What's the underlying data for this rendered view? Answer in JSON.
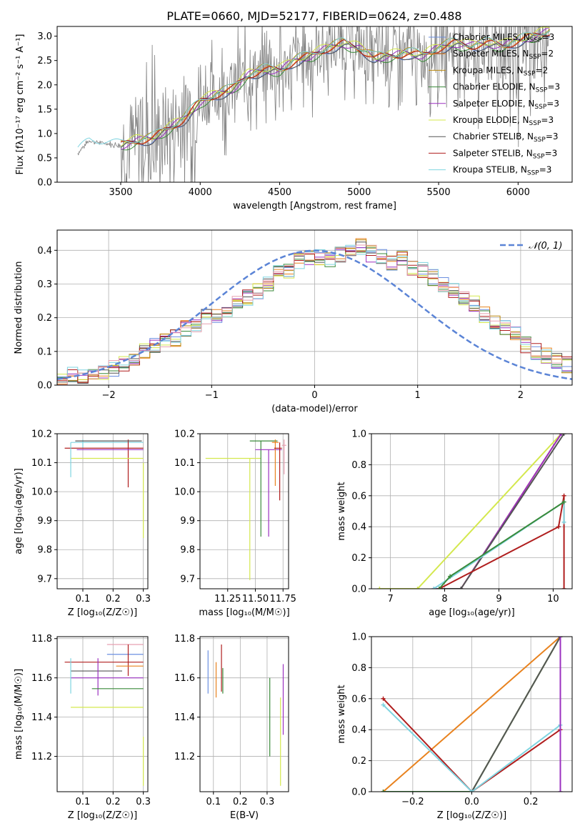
{
  "figure": {
    "title": "PLATE=0660, MJD=52177, FIBERID=0624, z=0.488"
  },
  "chart_data": [
    {
      "id": "spectrum",
      "type": "line",
      "xlabel": "wavelength [Angstrom, rest frame]",
      "ylabel": "Flux [fλ10⁻¹⁷ erg cm⁻² s⁻¹ A⁻¹]",
      "xlim": [
        3100,
        6340
      ],
      "ylim": [
        0,
        3.2
      ],
      "xticks": [
        3500,
        4000,
        4500,
        5000,
        5500,
        6000
      ],
      "yticks": [
        0.0,
        0.5,
        1.0,
        1.5,
        2.0,
        2.5,
        3.0
      ],
      "data_series": {
        "name": "data",
        "color": "#808080"
      },
      "model_points": {
        "x": [
          3230,
          3300,
          3400,
          3500,
          3600,
          3700,
          3800,
          3900,
          4000,
          4100,
          4200,
          4300,
          4400,
          4500,
          4600,
          4700,
          4800,
          4900,
          5000,
          5100,
          5200,
          5300,
          5400,
          5500,
          5600,
          5700,
          5800,
          5900,
          6000,
          6100,
          6200
        ],
        "y": [
          0.6,
          0.85,
          0.8,
          0.75,
          0.85,
          0.9,
          1.1,
          1.3,
          1.65,
          1.8,
          1.9,
          2.2,
          2.3,
          2.3,
          2.5,
          2.6,
          2.75,
          2.85,
          2.75,
          2.55,
          2.6,
          2.65,
          2.6,
          2.75,
          2.85,
          2.8,
          2.85,
          2.8,
          2.9,
          3.0,
          3.1
        ]
      },
      "legend": [
        {
          "text": "Chabrier MILES, N",
          "sub": "SSP",
          "tail": "=3",
          "color": "#6b8fe0"
        },
        {
          "text": "Salpeter MILES, N",
          "sub": "SSP",
          "tail": "=2",
          "color": "#e8821e"
        },
        {
          "text": "Kroupa MILES, N",
          "sub": "SSP",
          "tail": "=2",
          "color": "#b8860b"
        },
        {
          "text": "Chabrier ELODIE, N",
          "sub": "SSP",
          "tail": "=3",
          "color": "#3a8a3a"
        },
        {
          "text": "Salpeter ELODIE, N",
          "sub": "SSP",
          "tail": "=3",
          "color": "#9b30c0"
        },
        {
          "text": "Kroupa ELODIE, N",
          "sub": "SSP",
          "tail": "=3",
          "color": "#d4e84e"
        },
        {
          "text": "Chabrier STELIB, N",
          "sub": "SSP",
          "tail": "=3",
          "color": "#555555"
        },
        {
          "text": "Salpeter STELIB, N",
          "sub": "SSP",
          "tail": "=3",
          "color": "#b01e1e"
        },
        {
          "text": "Kroupa STELIB, N",
          "sub": "SSP",
          "tail": "=3",
          "color": "#7fd4e0"
        }
      ],
      "legend_position": "top-right"
    },
    {
      "id": "residuals",
      "type": "line",
      "xlabel": "(data-model)/error",
      "ylabel": "Normed distribution",
      "xlim": [
        -2.5,
        2.5
      ],
      "ylim": [
        0,
        0.46
      ],
      "xticks": [
        -2,
        -1,
        0,
        1,
        2
      ],
      "xticklabels": [
        "−2",
        "−1",
        "0",
        "1",
        "2"
      ],
      "yticks": [
        0.0,
        0.1,
        0.2,
        0.3,
        0.4
      ],
      "grid": true,
      "bin_width": 0.1,
      "histogram_heights": [
        0.02,
        0.03,
        0.03,
        0.04,
        0.04,
        0.05,
        0.06,
        0.07,
        0.1,
        0.12,
        0.13,
        0.14,
        0.17,
        0.18,
        0.2,
        0.2,
        0.22,
        0.24,
        0.26,
        0.28,
        0.3,
        0.33,
        0.34,
        0.37,
        0.38,
        0.38,
        0.37,
        0.39,
        0.4,
        0.41,
        0.39,
        0.38,
        0.36,
        0.38,
        0.35,
        0.34,
        0.32,
        0.3,
        0.28,
        0.26,
        0.24,
        0.21,
        0.19,
        0.17,
        0.15,
        0.12,
        0.1,
        0.09,
        0.07,
        0.06
      ],
      "gaussian": {
        "name": "𝒩(0, 1)",
        "mu": 0,
        "sigma": 1,
        "color": "#5b84d6"
      },
      "legend_position": "top-right"
    },
    {
      "id": "age-vs-Z",
      "type": "scatter",
      "xlabel": "Z [log₁₀(Z/Z☉)]",
      "ylabel": "age  [log₁₀(age/yr)]",
      "xlim": [
        0.015,
        0.315
      ],
      "ylim": [
        9.665,
        10.2
      ],
      "xticks": [
        0.1,
        0.2,
        0.3
      ],
      "yticks": [
        9.7,
        9.8,
        9.9,
        10.0,
        10.1,
        10.2
      ],
      "grid": true,
      "errorbars": [
        {
          "x": 0.1,
          "y": 10.17,
          "xerr": [
            0.04,
            0.2
          ],
          "yerr": [
            0.02,
            0.01
          ],
          "color": "#7fd4e0"
        },
        {
          "x": 0.25,
          "y": 10.15,
          "xerr": [
            0.21,
            0.05
          ],
          "yerr": [
            0.135,
            0.03
          ],
          "color": "#b01e1e"
        },
        {
          "x": 0.15,
          "y": 10.145,
          "xerr": [
            0.07,
            0.15
          ],
          "yerr": [
            0.0,
            0.0
          ],
          "color": "#9b30c0"
        },
        {
          "x": 0.2,
          "y": 10.115,
          "xerr": [
            0.14,
            0.1
          ],
          "yerr": [
            0.0,
            0.0
          ],
          "color": "#d4e84e"
        },
        {
          "x": 0.3,
          "y": 10.1,
          "xerr": [
            0.0,
            0.0
          ],
          "yerr": [
            0.26,
            0.0
          ],
          "color": "#d4e84e"
        },
        {
          "x": 0.06,
          "y": 10.05,
          "xerr": [
            0.0,
            0.0
          ],
          "yerr": [
            0.0,
            0.12
          ],
          "color": "#7fd4e0"
        },
        {
          "x": 0.175,
          "y": 10.175,
          "xerr": [
            0.1,
            0.12
          ],
          "yerr": [
            0.0,
            0.0
          ],
          "color": "#555555"
        }
      ]
    },
    {
      "id": "age-vs-mass",
      "type": "scatter",
      "xlabel": "mass [log₁₀(M/M☉)]",
      "ylabel": "",
      "xlim": [
        11.0,
        11.8
      ],
      "ylim": [
        9.665,
        10.2
      ],
      "xticks": [
        11.25,
        11.5,
        11.75
      ],
      "xticklabels": [
        "11.25",
        "11.50",
        "11.75"
      ],
      "yticks": [
        9.7,
        9.8,
        9.9,
        10.0,
        10.1,
        10.2
      ],
      "grid": true,
      "errorbars": [
        {
          "x": 11.45,
          "y": 10.115,
          "xerr": [
            0.4,
            0.1
          ],
          "yerr": [
            0.42,
            0.0
          ],
          "color": "#d4e84e"
        },
        {
          "x": 11.55,
          "y": 10.175,
          "xerr": [
            0.1,
            0.15
          ],
          "yerr": [
            0.33,
            0.0
          ],
          "color": "#3a8a3a"
        },
        {
          "x": 11.62,
          "y": 10.145,
          "xerr": [
            0.12,
            0.12
          ],
          "yerr": [
            0.3,
            0.0
          ],
          "color": "#9b30c0"
        },
        {
          "x": 11.68,
          "y": 10.17,
          "xerr": [
            0.03,
            0.03
          ],
          "yerr": [
            0.15,
            0.01
          ],
          "color": "#e8821e"
        },
        {
          "x": 11.72,
          "y": 10.15,
          "xerr": [
            0.05,
            0.02
          ],
          "yerr": [
            0.18,
            0.02
          ],
          "color": "#b01e1e"
        },
        {
          "x": 11.76,
          "y": 10.16,
          "xerr": [
            0.02,
            0.02
          ],
          "yerr": [
            0.1,
            0.02
          ],
          "color": "#e8a0b0"
        }
      ]
    },
    {
      "id": "weight-vs-age",
      "type": "line",
      "xlabel": "age  [log₁₀(age/yr)]",
      "ylabel": "mass weight",
      "xlim": [
        6.65,
        10.35
      ],
      "ylim": [
        0,
        1.0
      ],
      "xticks": [
        7,
        8,
        9,
        10
      ],
      "yticks": [
        0.0,
        0.2,
        0.4,
        0.6,
        0.8,
        1.0
      ],
      "grid": true,
      "series": [
        {
          "color": "#d4e84e",
          "x": [
            6.8,
            7.5,
            10.15
          ],
          "y": [
            0.0,
            0.0,
            1.0
          ]
        },
        {
          "color": "#e8821e",
          "x": [
            7.9,
            8.3,
            10.15
          ],
          "y": [
            0.0,
            0.0,
            1.0
          ]
        },
        {
          "color": "#9b30c0",
          "x": [
            7.8,
            8.3,
            10.15
          ],
          "y": [
            0.0,
            0.0,
            1.0
          ]
        },
        {
          "color": "#555555",
          "x": [
            7.9,
            8.3,
            10.2
          ],
          "y": [
            0.0,
            0.0,
            1.0
          ]
        },
        {
          "color": "#b01e1e",
          "x": [
            7.9,
            10.1,
            10.2,
            10.2
          ],
          "y": [
            0.0,
            0.4,
            0.6,
            0.0
          ]
        },
        {
          "color": "#7fd4e0",
          "x": [
            7.8,
            10.2,
            10.2
          ],
          "y": [
            0.0,
            0.56,
            0.43
          ]
        },
        {
          "color": "#3a8a3a",
          "x": [
            7.9,
            8.1,
            10.2
          ],
          "y": [
            0.0,
            0.08,
            0.56
          ]
        }
      ]
    },
    {
      "id": "mass-vs-Z",
      "type": "scatter",
      "xlabel": "Z [log₁₀(Z/Z☉)]",
      "ylabel": "mass [log₁₀(M/M☉)]",
      "xlim": [
        0.015,
        0.315
      ],
      "ylim": [
        11.02,
        11.81
      ],
      "xticks": [
        0.1,
        0.2,
        0.3
      ],
      "yticks": [
        11.2,
        11.4,
        11.6,
        11.8
      ],
      "grid": true,
      "errorbars": [
        {
          "x": 0.25,
          "y": 11.77,
          "xerr": [
            0.07,
            0.05
          ],
          "yerr": [
            0.0,
            0.0
          ],
          "color": "#e8a0b0"
        },
        {
          "x": 0.25,
          "y": 11.72,
          "xerr": [
            0.07,
            0.05
          ],
          "yerr": [
            0.0,
            0.0
          ],
          "color": "#6b8fe0"
        },
        {
          "x": 0.25,
          "y": 11.68,
          "xerr": [
            0.21,
            0.05
          ],
          "yerr": [
            0.07,
            0.09
          ],
          "color": "#b01e1e"
        },
        {
          "x": 0.25,
          "y": 11.66,
          "xerr": [
            0.04,
            0.05
          ],
          "yerr": [
            0.0,
            0.0
          ],
          "color": "#e8821e"
        },
        {
          "x": 0.15,
          "y": 11.635,
          "xerr": [
            0.09,
            0.08
          ],
          "yerr": [
            0.0,
            0.0
          ],
          "color": "#555555"
        },
        {
          "x": 0.15,
          "y": 11.6,
          "xerr": [
            0.09,
            0.15
          ],
          "yerr": [
            0.09,
            0.1
          ],
          "color": "#9b30c0"
        },
        {
          "x": 0.15,
          "y": 11.545,
          "xerr": [
            0.02,
            0.15
          ],
          "yerr": [
            0.0,
            0.0
          ],
          "color": "#3a8a3a"
        },
        {
          "x": 0.2,
          "y": 11.45,
          "xerr": [
            0.14,
            0.1
          ],
          "yerr": [
            0.0,
            0.0
          ],
          "color": "#d4e84e"
        },
        {
          "x": 0.3,
          "y": 11.3,
          "xerr": [
            0.0,
            0.0
          ],
          "yerr": [
            0.25,
            0.0
          ],
          "color": "#d4e84e"
        },
        {
          "x": 0.06,
          "y": 11.6,
          "xerr": [
            0.0,
            0.0
          ],
          "yerr": [
            0.08,
            0.1
          ],
          "color": "#7fd4e0"
        }
      ]
    },
    {
      "id": "mass-vs-ebv",
      "type": "scatter",
      "xlabel": "E(B-V)",
      "ylabel": "",
      "xlim": [
        0.05,
        0.38
      ],
      "ylim": [
        11.02,
        11.81
      ],
      "xticks": [
        0.1,
        0.2,
        0.3
      ],
      "yticks": [
        11.2,
        11.4,
        11.6,
        11.8
      ],
      "grid": true,
      "errorbars": [
        {
          "x": 0.08,
          "y": 11.62,
          "xerr": [
            0.0,
            0.0
          ],
          "yerr": [
            0.1,
            0.12
          ],
          "color": "#6b8fe0"
        },
        {
          "x": 0.11,
          "y": 11.6,
          "xerr": [
            0.0,
            0.0
          ],
          "yerr": [
            0.1,
            0.08
          ],
          "color": "#e8821e"
        },
        {
          "x": 0.13,
          "y": 11.63,
          "xerr": [
            0.0,
            0.0
          ],
          "yerr": [
            0.1,
            0.14
          ],
          "color": "#b01e1e"
        },
        {
          "x": 0.135,
          "y": 11.6,
          "xerr": [
            0.0,
            0.0
          ],
          "yerr": [
            0.08,
            0.05
          ],
          "color": "#3a8a3a"
        },
        {
          "x": 0.31,
          "y": 11.4,
          "xerr": [
            0.0,
            0.0
          ],
          "yerr": [
            0.2,
            0.2
          ],
          "color": "#3a8a3a"
        },
        {
          "x": 0.35,
          "y": 11.3,
          "xerr": [
            0.0,
            0.0
          ],
          "yerr": [
            0.25,
            0.2
          ],
          "color": "#d4e84e"
        },
        {
          "x": 0.36,
          "y": 11.49,
          "xerr": [
            0.0,
            0.0
          ],
          "yerr": [
            0.18,
            0.18
          ],
          "color": "#9b30c0"
        }
      ]
    },
    {
      "id": "weight-vs-Z",
      "type": "line",
      "xlabel": "Z [log₁₀(Z/Z☉)]",
      "ylabel": "mass weight",
      "xlim": [
        -0.34,
        0.34
      ],
      "ylim": [
        0,
        1.0
      ],
      "xticks": [
        -0.2,
        0.0,
        0.2
      ],
      "xticklabels": [
        "−0.2",
        "0.0",
        "0.2"
      ],
      "yticks": [
        0.0,
        0.2,
        0.4,
        0.6,
        0.8,
        1.0
      ],
      "grid": true,
      "series": [
        {
          "color": "#e8821e",
          "x": [
            -0.3,
            0.3
          ],
          "y": [
            0.0,
            1.0
          ]
        },
        {
          "color": "#d4e84e",
          "x": [
            0.0,
            0.3
          ],
          "y": [
            0.0,
            1.0
          ]
        },
        {
          "color": "#3a8a3a",
          "x": [
            -0.3,
            0.0,
            0.3
          ],
          "y": [
            0.0,
            0.0,
            1.0
          ]
        },
        {
          "color": "#555555",
          "x": [
            0.0,
            0.3
          ],
          "y": [
            0.0,
            1.0
          ]
        },
        {
          "color": "#b01e1e",
          "x": [
            -0.3,
            0.0,
            0.3
          ],
          "y": [
            0.6,
            0.0,
            0.4
          ]
        },
        {
          "color": "#7fd4e0",
          "x": [
            -0.3,
            0.0,
            0.3
          ],
          "y": [
            0.56,
            0.0,
            0.43
          ]
        },
        {
          "color": "#9b30c0",
          "x": [
            0.3,
            0.3
          ],
          "y": [
            0.0,
            1.0
          ]
        }
      ]
    }
  ]
}
